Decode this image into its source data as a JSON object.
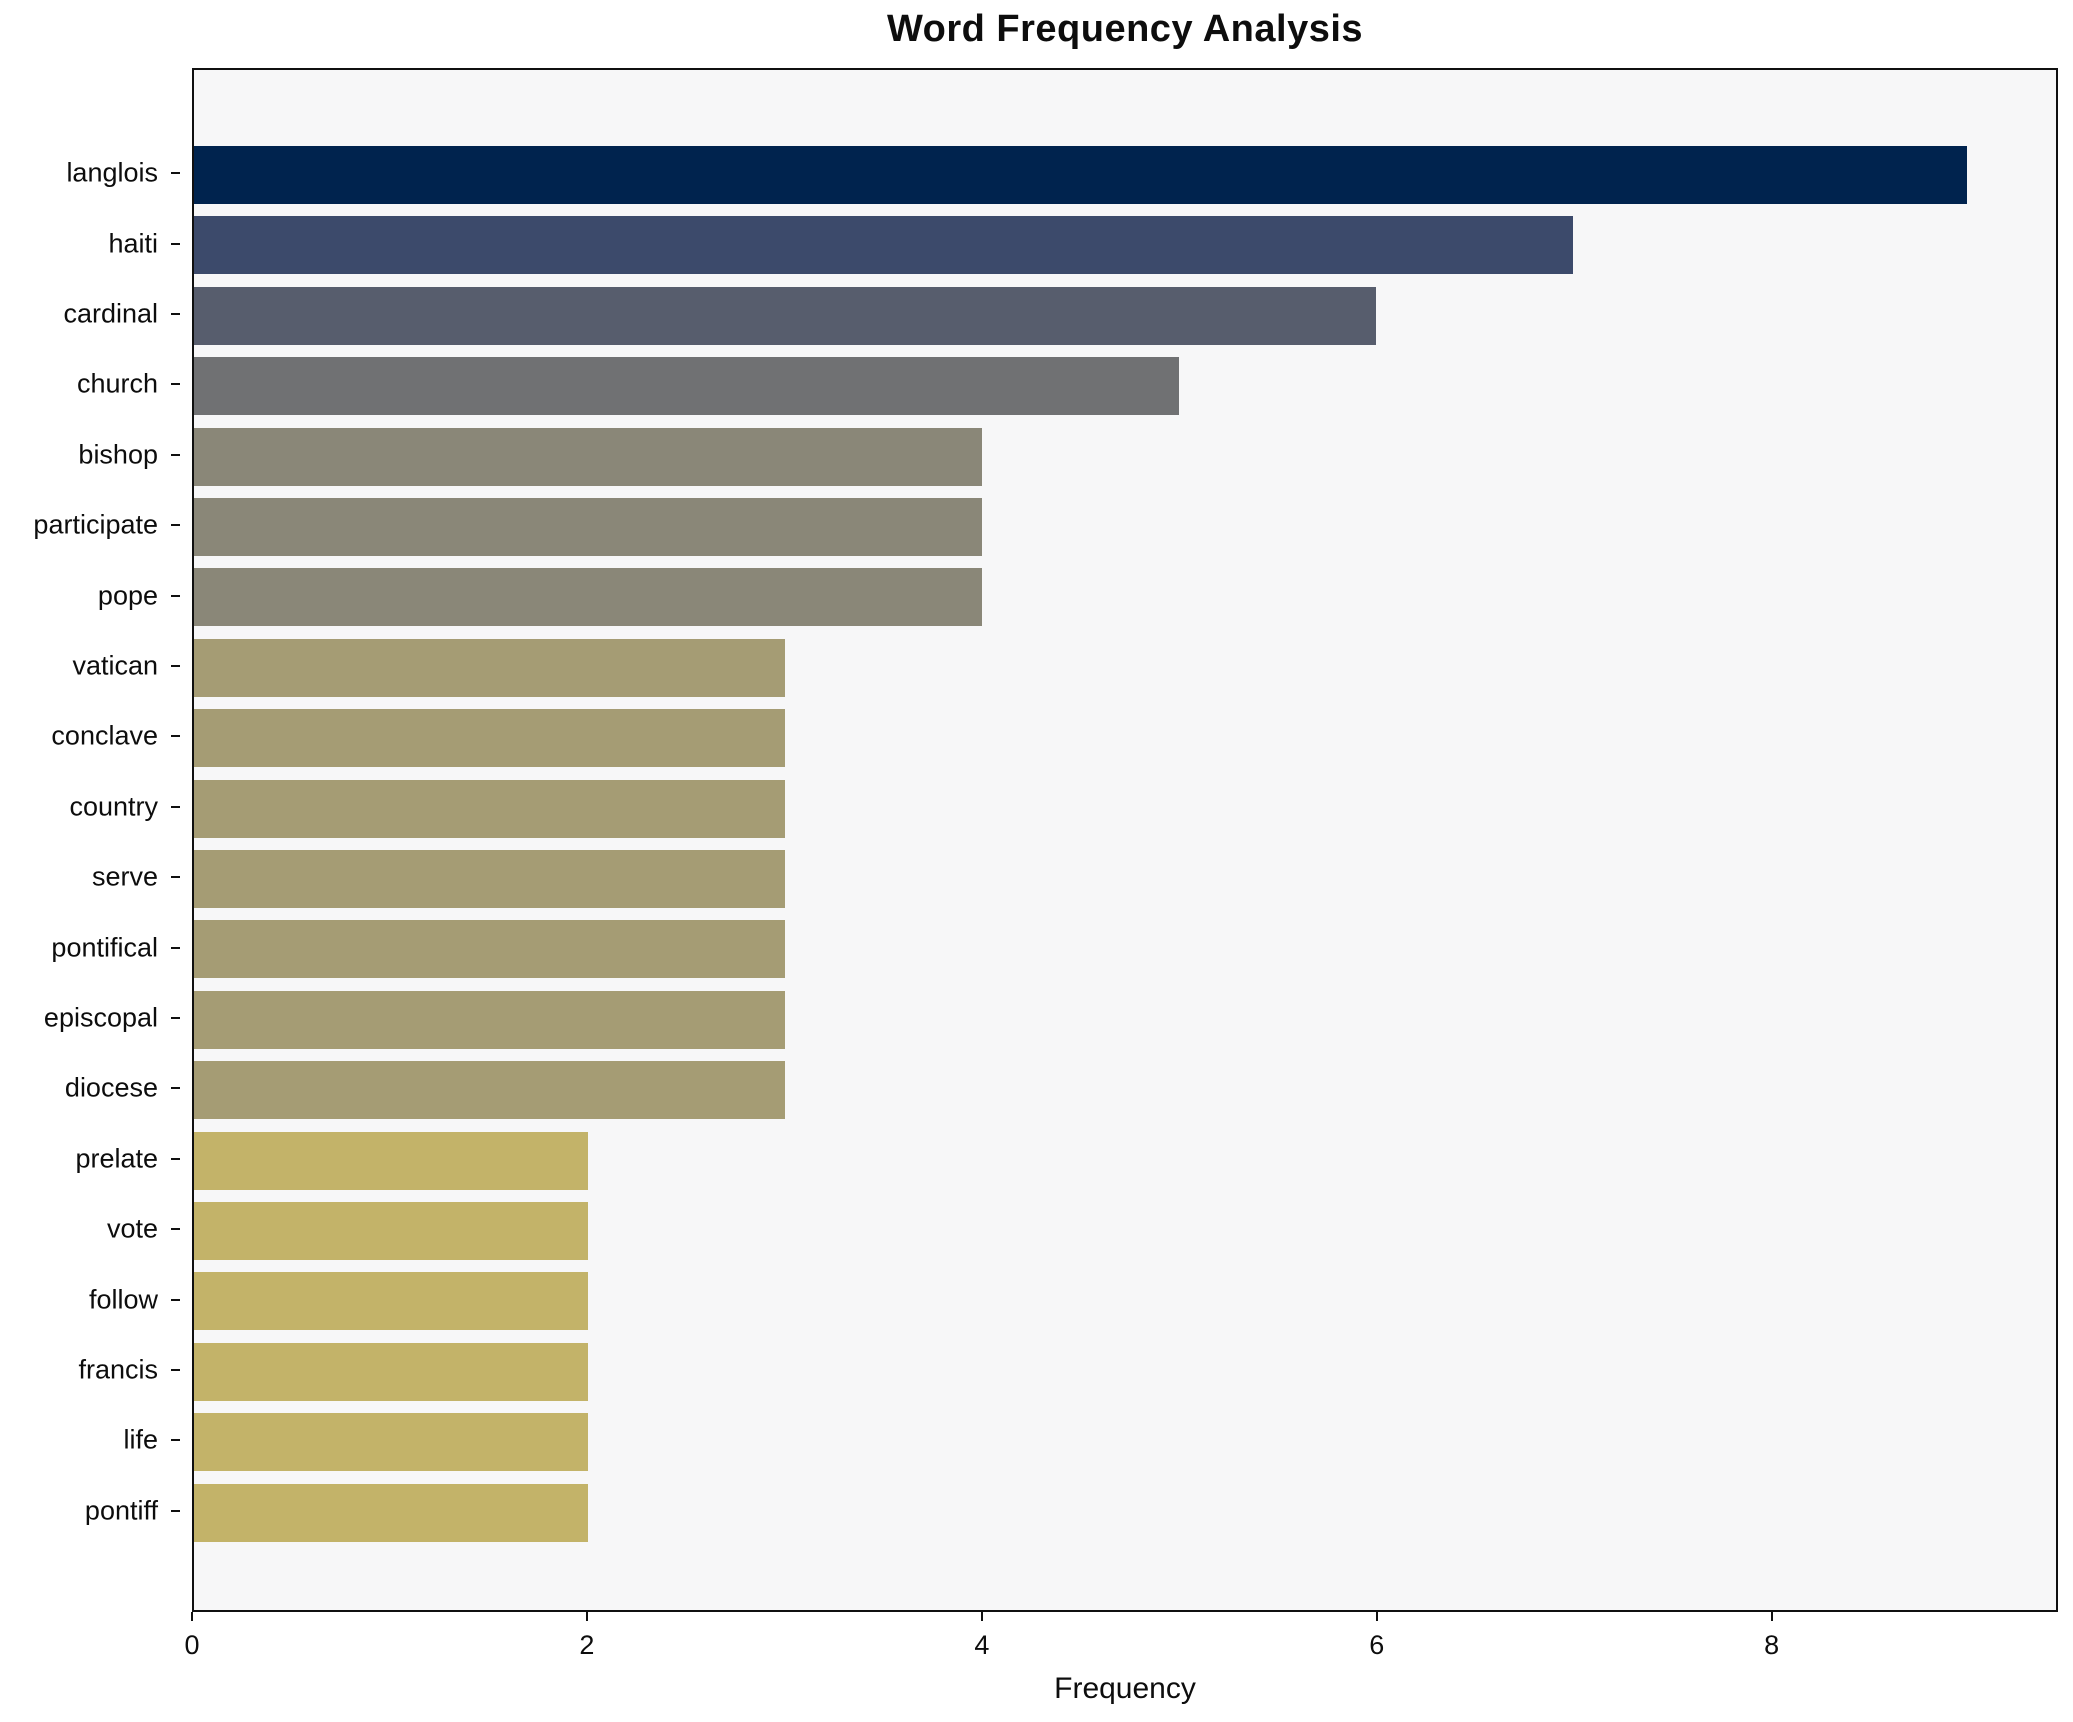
{
  "chart_data": {
    "type": "bar",
    "orientation": "horizontal",
    "title": "Word Frequency Analysis",
    "xlabel": "Frequency",
    "ylabel": "",
    "categories": [
      "langlois",
      "haiti",
      "cardinal",
      "church",
      "bishop",
      "participate",
      "pope",
      "vatican",
      "conclave",
      "country",
      "serve",
      "pontifical",
      "episcopal",
      "diocese",
      "prelate",
      "vote",
      "follow",
      "francis",
      "life",
      "pontiff"
    ],
    "values": [
      9,
      7,
      6,
      5,
      4,
      4,
      4,
      3,
      3,
      3,
      3,
      3,
      3,
      3,
      2,
      2,
      2,
      2,
      2,
      2
    ],
    "bar_colors": [
      "#00234e",
      "#3c4a6b",
      "#575d6d",
      "#707173",
      "#8a8778",
      "#8a8778",
      "#8a8778",
      "#a59c74",
      "#a59c74",
      "#a59c74",
      "#a59c74",
      "#a59c74",
      "#a59c74",
      "#a59c74",
      "#c3b369",
      "#c3b369",
      "#c3b369",
      "#c3b369",
      "#c3b369",
      "#c3b369"
    ],
    "xlim": [
      0,
      9.45
    ],
    "x_ticks": [
      0,
      2,
      4,
      6,
      8
    ],
    "grid": false,
    "legend_position": "none",
    "plot_background": "#f7f7f8",
    "page_background": "#ffffff",
    "axis_color": "#101010",
    "text_color": "#0d0d0d"
  }
}
